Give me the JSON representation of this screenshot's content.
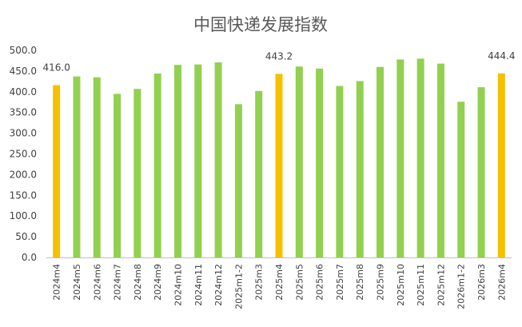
{
  "chart_data": {
    "type": "bar",
    "title": "中国快递发展指数",
    "xlabel": "",
    "ylabel": "",
    "ylim": [
      0,
      500
    ],
    "yticks": [
      "0.0",
      "50.0",
      "100.0",
      "150.0",
      "200.0",
      "250.0",
      "300.0",
      "350.0",
      "400.0",
      "450.0",
      "500.0"
    ],
    "grid": false,
    "legend": "none",
    "categories": [
      "2024m4",
      "2024m5",
      "2024m6",
      "2024m7",
      "2024m8",
      "2024m9",
      "2024m10",
      "2024m11",
      "2024m12",
      "2025m1-2",
      "2025m3",
      "2025m4",
      "2025m5",
      "2025m6",
      "2025m7",
      "2025m8",
      "2025m9",
      "2025m10",
      "2025m11",
      "2025m12",
      "2026m1-2",
      "2026m3",
      "2026m4"
    ],
    "values": [
      416.0,
      437,
      435,
      395,
      407,
      444,
      465,
      466,
      471,
      370,
      402,
      443.2,
      461,
      456,
      414,
      426,
      460,
      478,
      480,
      468,
      376,
      411,
      444.4
    ],
    "highlight_indices": [
      0,
      11,
      22
    ],
    "data_labels": [
      {
        "index": 0,
        "text": "416.0"
      },
      {
        "index": 11,
        "text": "443.2"
      },
      {
        "index": 22,
        "text": "444.4"
      }
    ],
    "colors": {
      "default": "#92d050",
      "highlight": "#f5c000",
      "text": "#404040",
      "title": "#595959"
    }
  }
}
